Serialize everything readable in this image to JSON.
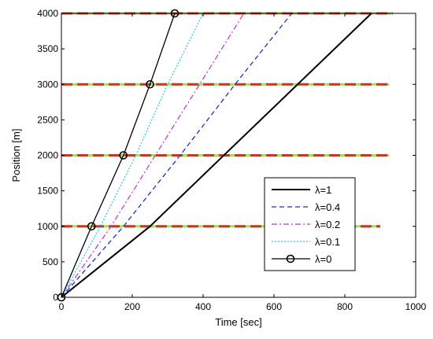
{
  "chart_data": {
    "type": "line",
    "title": "",
    "xlabel": "Time [sec]",
    "ylabel": "Position [m]",
    "xlim": [
      0,
      1000
    ],
    "ylim": [
      0,
      4000
    ],
    "xticks": [
      0,
      200,
      400,
      600,
      800,
      1000
    ],
    "yticks": [
      0,
      500,
      1000,
      1500,
      2000,
      2500,
      3000,
      3500,
      4000
    ],
    "grid": false,
    "legend_position": "lower-right",
    "series": [
      {
        "name": "λ=1",
        "color": "#000000",
        "dash": "solid",
        "width": 2,
        "x": [
          0,
          250,
          875
        ],
        "y": [
          0,
          1000,
          4000
        ]
      },
      {
        "name": "λ=0.4",
        "color": "#1f2fbf",
        "dash": "dashed",
        "width": 1.3,
        "x": [
          0,
          175,
          335,
          490,
          650
        ],
        "y": [
          0,
          1000,
          2000,
          3000,
          4000
        ]
      },
      {
        "name": "λ=0.2",
        "color": "#c030d0",
        "dash": "dashdot",
        "width": 1.2,
        "x": [
          0,
          140,
          265,
          390,
          515
        ],
        "y": [
          0,
          1000,
          2000,
          3000,
          4000
        ]
      },
      {
        "name": "λ=0.1",
        "color": "#20c8e0",
        "dash": "dotted",
        "width": 1.2,
        "x": [
          0,
          110,
          210,
          300,
          400
        ],
        "y": [
          0,
          1000,
          2000,
          3000,
          4000
        ]
      },
      {
        "name": "λ=0",
        "color": "#000000",
        "dash": "solid",
        "width": 1.3,
        "marker": "circle",
        "x": [
          0,
          85,
          175,
          250,
          320
        ],
        "y": [
          0,
          1000,
          2000,
          3000,
          4000
        ]
      }
    ],
    "reference_lines": [
      {
        "y": 1000,
        "x_start": 0,
        "x_end": 900
      },
      {
        "y": 2000,
        "x_start": 0,
        "x_end": 925
      },
      {
        "y": 3000,
        "x_start": 0,
        "x_end": 925
      },
      {
        "y": 4000,
        "x_start": 0,
        "x_end": 935
      }
    ],
    "reference_colors": {
      "dash": "#c0392b",
      "base": "#9be15d"
    }
  }
}
